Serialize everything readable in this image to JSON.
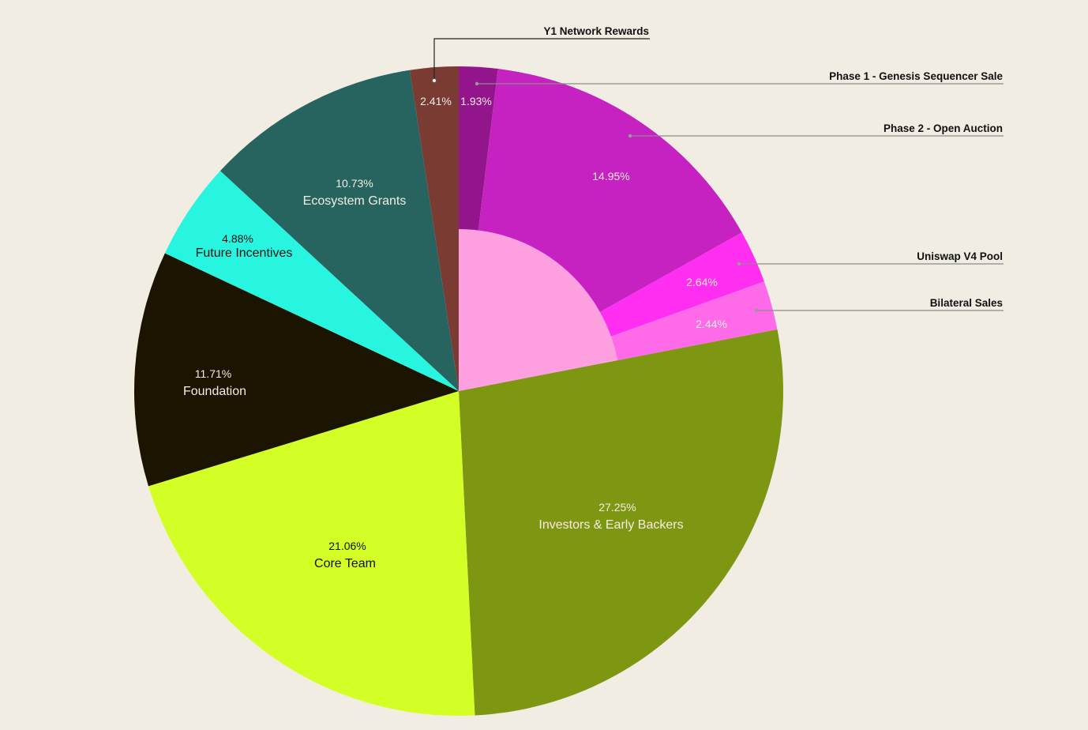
{
  "chart_data": {
    "type": "pie",
    "title": "",
    "slices": [
      {
        "label": "Phase 1 - Genesis Sequencer Sale",
        "value": 1.93,
        "pct_label": "1.93%",
        "color": "#92158c",
        "callout": true,
        "group": "sales"
      },
      {
        "label": "Phase 2 - Open Auction",
        "value": 14.95,
        "pct_label": "14.95%",
        "color": "#c622c2",
        "callout": true,
        "group": "sales"
      },
      {
        "label": "Uniswap V4 Pool",
        "value": 2.64,
        "pct_label": "2.64%",
        "color": "#ff2ef0",
        "callout": true,
        "group": "sales"
      },
      {
        "label": "Bilateral Sales",
        "value": 2.44,
        "pct_label": "2.44%",
        "color": "#ff6ae8",
        "callout": true,
        "group": "sales"
      },
      {
        "label": "Investors & Early Backers",
        "value": 27.25,
        "pct_label": "27.25%",
        "color": "#7e9713",
        "callout": false
      },
      {
        "label": "Core Team",
        "value": 21.06,
        "pct_label": "21.06%",
        "color": "#d4ff26",
        "callout": false
      },
      {
        "label": "Foundation",
        "value": 11.71,
        "pct_label": "11.71%",
        "color": "#1a1400",
        "callout": false
      },
      {
        "label": "Future Incentives",
        "value": 4.88,
        "pct_label": "4.88%",
        "color": "#28f5e0",
        "callout": false
      },
      {
        "label": "Ecosystem Grants",
        "value": 10.73,
        "pct_label": "10.73%",
        "color": "#276460",
        "callout": false
      },
      {
        "label": "Y1 Network Rewards",
        "value": 2.41,
        "pct_label": "2.41%",
        "color": "#7a3b33",
        "callout": true
      }
    ],
    "inner_group_color": "#ffa0e0",
    "background": "#f2ede2"
  }
}
